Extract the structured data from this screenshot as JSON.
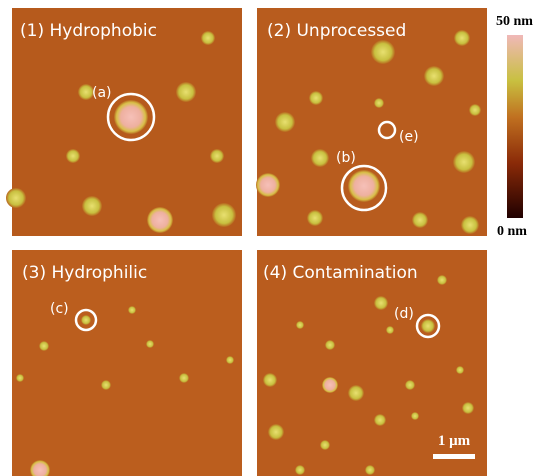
{
  "panels": [
    {
      "title": "(1) Hydrophobic",
      "annotations": [
        "(a)"
      ]
    },
    {
      "title": "(2) Unprocessed",
      "annotations": [
        "(b)",
        "(e)"
      ]
    },
    {
      "title": "(3) Hydrophilic",
      "annotations": [
        "(c)"
      ]
    },
    {
      "title": "(4) Contamination",
      "annotations": [
        "(d)"
      ]
    }
  ],
  "colorbar": {
    "max_label": "50 nm",
    "min_label": "0 nm"
  },
  "scale_bar": {
    "label": "1 μm"
  }
}
